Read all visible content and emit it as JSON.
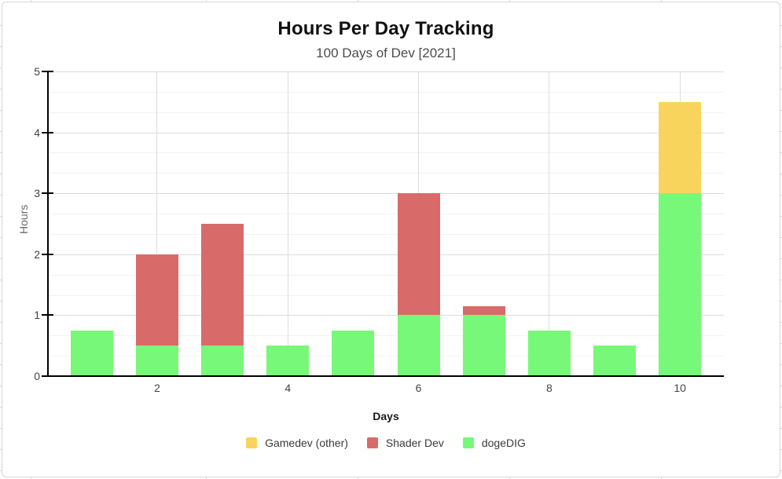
{
  "header": {
    "title": "Hours Per Day Tracking",
    "subtitle": "100 Days of Dev [2021]"
  },
  "chart_data": {
    "type": "bar",
    "stacked": true,
    "title": "Hours Per Day Tracking",
    "subtitle": "100 Days of Dev [2021]",
    "xlabel": "Days",
    "ylabel": "Hours",
    "categories": [
      1,
      2,
      3,
      4,
      5,
      6,
      7,
      8,
      9,
      10
    ],
    "series": [
      {
        "name": "Gamedev (other)",
        "color": "#F9D45C",
        "values": [
          0,
          0,
          0,
          0,
          0,
          0,
          0,
          0,
          0,
          1.5
        ]
      },
      {
        "name": "Shader Dev",
        "color": "#D96A6A",
        "values": [
          0,
          1.5,
          2,
          0,
          0,
          2,
          0.15,
          0,
          0,
          0
        ]
      },
      {
        "name": "dogeDIG",
        "color": "#78F878",
        "values": [
          0.75,
          0.5,
          0.5,
          0.5,
          0.75,
          1,
          1,
          0.75,
          0.5,
          3
        ]
      }
    ],
    "stack_order_bottom_to_top": [
      "dogeDIG",
      "Shader Dev",
      "Gamedev (other)"
    ],
    "totals_per_day": [
      0.75,
      2,
      2.5,
      0.5,
      0.75,
      3,
      1.15,
      0.75,
      0.5,
      4.5
    ],
    "ylim": [
      0,
      5
    ],
    "y_ticks": [
      0,
      1,
      2,
      3,
      4,
      5
    ],
    "x_ticks": [
      2,
      4,
      6,
      8,
      10
    ],
    "minor_gridlines_per_unit": 3,
    "grid": true,
    "legend_position": "bottom",
    "legend": [
      "Gamedev (other)",
      "Shader Dev",
      "dogeDIG"
    ]
  },
  "colors": {
    "axis_line": "#000000",
    "gridline_major": "#dcdcdc",
    "gridline_minor": "#f2f2f2",
    "gridline_vertical": "#dddddd",
    "frame_border": "#d6d6d6"
  }
}
